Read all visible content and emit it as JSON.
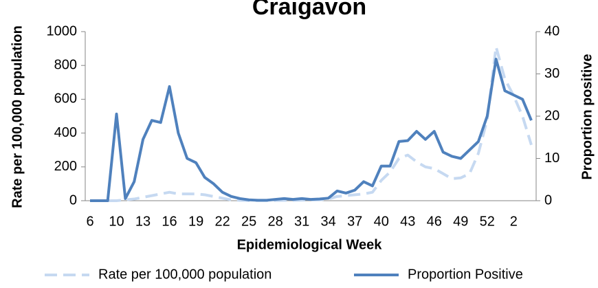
{
  "chart_data": {
    "type": "line",
    "title": "Craigavon",
    "x_label": "Epidemiological Week",
    "y_label": "Rate per 100,000 population",
    "y2_label": "Proportion positive",
    "categories": [
      "6",
      null,
      null,
      "10",
      null,
      null,
      "13",
      null,
      null,
      "16",
      null,
      null,
      "19",
      null,
      null,
      "22",
      null,
      null,
      "25",
      null,
      null,
      "28",
      null,
      null,
      "31",
      null,
      null,
      "34",
      null,
      null,
      "37",
      null,
      null,
      "40",
      null,
      null,
      "43",
      null,
      null,
      "46",
      null,
      null,
      "49",
      null,
      null,
      "52",
      null,
      null,
      "2",
      null,
      null
    ],
    "series": [
      {
        "name": "Rate per 100,000 population",
        "color": "#c6d9f1",
        "dashed": true,
        "values": [
          0,
          0,
          0,
          0,
          5,
          10,
          20,
          30,
          40,
          50,
          40,
          40,
          40,
          35,
          25,
          15,
          5,
          2,
          1,
          1,
          1,
          1,
          2,
          2,
          3,
          4,
          5,
          10,
          25,
          30,
          35,
          40,
          50,
          120,
          170,
          250,
          270,
          230,
          200,
          190,
          160,
          130,
          135,
          160,
          280,
          480,
          910,
          720,
          620,
          500,
          330
        ]
      },
      {
        "name": "Proportion Positive",
        "color": "#4f81bd",
        "axis": "y2",
        "values": [
          0,
          0,
          0,
          20.5,
          0.5,
          4.5,
          14.5,
          19,
          18.5,
          27,
          16,
          10,
          9,
          5.5,
          4,
          2,
          1,
          0.5,
          0.2,
          0.1,
          0.1,
          0.3,
          0.5,
          0.3,
          0.5,
          0.3,
          0.4,
          0.6,
          2.3,
          1.8,
          2.5,
          4.5,
          3.5,
          8.2,
          8.2,
          14,
          14.2,
          16.4,
          14.5,
          16.4,
          11.5,
          10.5,
          10,
          12,
          14,
          20,
          33.5,
          26,
          25,
          24,
          19
        ]
      }
    ],
    "ylim": [
      0,
      1000
    ],
    "yticks": [
      0,
      200,
      400,
      600,
      800,
      1000
    ],
    "y2lim": [
      0,
      40
    ],
    "y2ticks": [
      0,
      10,
      20,
      30,
      40
    ],
    "legend": "bottom"
  }
}
